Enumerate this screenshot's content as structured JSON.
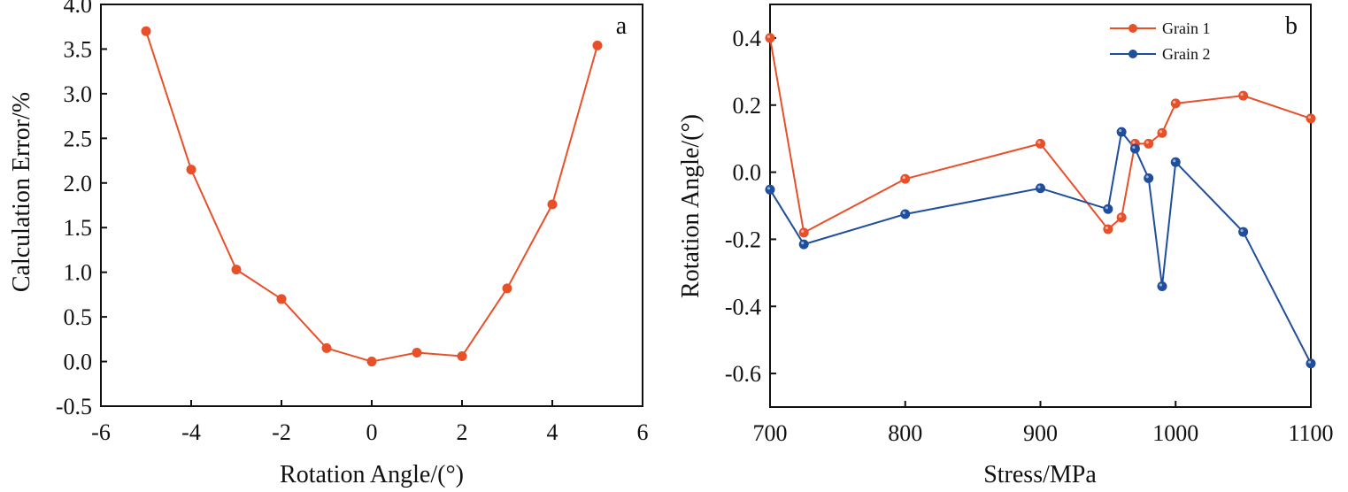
{
  "chart_data": [
    {
      "type": "line",
      "panel_label": "a",
      "xlabel": "Rotation Angle/(°)",
      "ylabel": "Calculation Error/%",
      "xlim": [
        -6,
        6
      ],
      "ylim": [
        -0.5,
        4.0
      ],
      "x_ticks": [
        -6,
        -4,
        -2,
        0,
        2,
        4,
        6
      ],
      "x_tick_labels": [
        "-6",
        "-4",
        "-2",
        "0",
        "2",
        "4",
        "6"
      ],
      "y_ticks": [
        -0.5,
        0.0,
        0.5,
        1.0,
        1.5,
        2.0,
        2.5,
        3.0,
        3.5,
        4.0
      ],
      "y_tick_labels": [
        "-0.5",
        "0.0",
        "0.5",
        "1.0",
        "1.5",
        "2.0",
        "2.5",
        "3.0",
        "3.5",
        "4.0"
      ],
      "grid": false,
      "legend": "none",
      "series": [
        {
          "name": "Calculation Error",
          "color": "#E8502A",
          "x": [
            -5,
            -4,
            -3,
            -2,
            -1,
            0,
            1,
            2,
            3,
            4,
            5
          ],
          "values": [
            3.7,
            2.15,
            1.03,
            0.7,
            0.15,
            0.0,
            0.1,
            0.06,
            0.82,
            1.76,
            3.54
          ]
        }
      ]
    },
    {
      "type": "line",
      "panel_label": "b",
      "xlabel": "Stress/MPa",
      "ylabel": "Rotation Angle/(°)",
      "xlim": [
        700,
        1100
      ],
      "ylim": [
        -0.7,
        0.5
      ],
      "x_ticks": [
        700,
        800,
        900,
        1000,
        1100
      ],
      "x_tick_labels": [
        "700",
        "800",
        "900",
        "1000",
        "1100"
      ],
      "y_ticks": [
        -0.6,
        -0.4,
        -0.2,
        0.0,
        0.2,
        0.4
      ],
      "y_tick_labels": [
        "-0.6",
        "-0.4",
        "-0.2",
        "0.0",
        "0.2",
        "0.4"
      ],
      "grid": false,
      "legend": "top-right",
      "series": [
        {
          "name": "Grain 1",
          "color": "#E8502A",
          "x": [
            700,
            725,
            800,
            900,
            950,
            960,
            970,
            980,
            990,
            1000,
            1050,
            1100
          ],
          "values": [
            0.4,
            -0.18,
            -0.02,
            0.085,
            -0.17,
            -0.135,
            0.085,
            0.085,
            0.117,
            0.205,
            0.228,
            0.16
          ]
        },
        {
          "name": "Grain 2",
          "color": "#1F4E9C",
          "x": [
            700,
            725,
            800,
            900,
            950,
            960,
            970,
            980,
            990,
            1000,
            1050,
            1100
          ],
          "values": [
            -0.052,
            -0.215,
            -0.125,
            -0.048,
            -0.11,
            0.12,
            0.07,
            -0.018,
            -0.34,
            0.03,
            -0.178,
            -0.57
          ]
        }
      ]
    }
  ]
}
